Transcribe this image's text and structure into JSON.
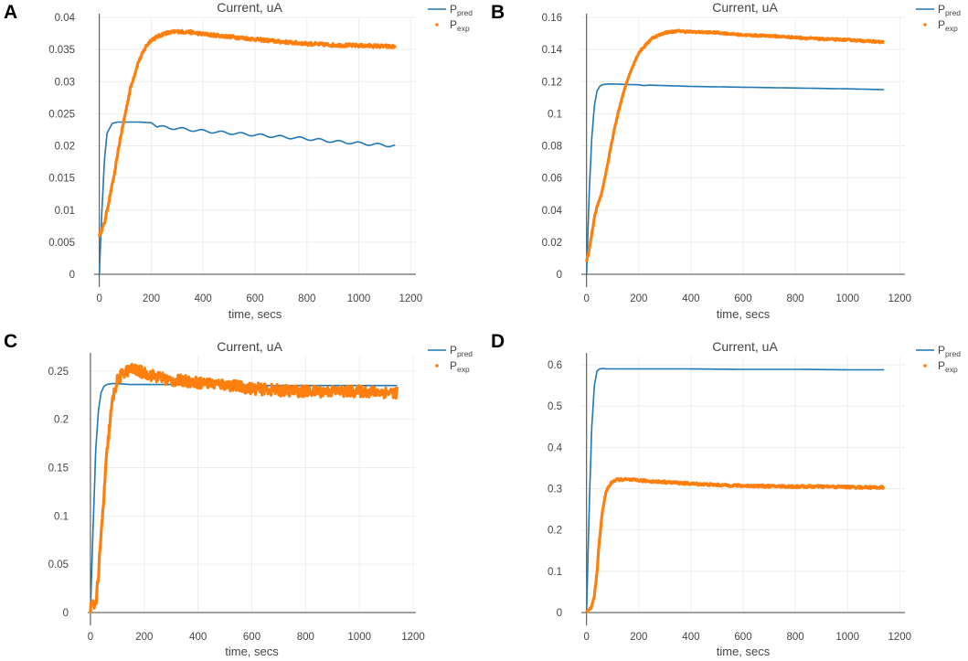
{
  "panels": [
    "A",
    "B",
    "C",
    "D"
  ],
  "colors": {
    "pred": "#1f77b4",
    "exp": "#ff7f0e",
    "grid": "#eeeeee",
    "axis": "#444444"
  },
  "chart_data": [
    {
      "panel": "A",
      "type": "line",
      "title": "Current, uA",
      "xlabel": "time, secs",
      "ylabel": "",
      "xlim": [
        -20,
        1220
      ],
      "ylim": [
        0,
        0.04
      ],
      "xticks": [
        0,
        200,
        400,
        600,
        800,
        1000,
        1200
      ],
      "xtick_labels": [
        "0",
        "200",
        "400",
        "600",
        "800",
        "1000",
        "1200"
      ],
      "yticks": [
        0,
        0.005,
        0.01,
        0.015,
        0.02,
        0.025,
        0.03,
        0.035,
        0.04
      ],
      "ytick_labels": [
        "0",
        "0.005",
        "0.01",
        "0.015",
        "0.02",
        "0.025",
        "0.03",
        "0.035",
        "0.04"
      ],
      "legend": {
        "position": "top-right",
        "entries": [
          {
            "base": "P",
            "sub": "pred",
            "series": "pred"
          },
          {
            "base": "P",
            "sub": "exp",
            "series": "exp"
          }
        ]
      },
      "series": [
        {
          "name": "P_pred",
          "key": "pred",
          "x": [
            0,
            10,
            20,
            30,
            50,
            70,
            100,
            150,
            200,
            220,
            300,
            400,
            500,
            600,
            700,
            800,
            900,
            1000,
            1100,
            1140
          ],
          "y": [
            0,
            0.01,
            0.018,
            0.022,
            0.0235,
            0.0237,
            0.0237,
            0.0237,
            0.0236,
            0.023,
            0.0227,
            0.0223,
            0.022,
            0.0217,
            0.0214,
            0.0211,
            0.0207,
            0.0204,
            0.0201,
            0.02
          ],
          "wiggle": 0.0002
        },
        {
          "name": "P_exp",
          "key": "exp",
          "x": [
            0,
            20,
            40,
            60,
            80,
            100,
            120,
            150,
            180,
            200,
            250,
            300,
            350,
            400,
            500,
            600,
            700,
            800,
            900,
            1000,
            1100,
            1140
          ],
          "y": [
            0.006,
            0.008,
            0.012,
            0.016,
            0.021,
            0.025,
            0.029,
            0.033,
            0.0355,
            0.0365,
            0.0375,
            0.0378,
            0.0377,
            0.0374,
            0.037,
            0.0366,
            0.0362,
            0.0359,
            0.0357,
            0.0356,
            0.0355,
            0.0354
          ],
          "noise": 0.00025
        }
      ]
    },
    {
      "panel": "B",
      "type": "line",
      "title": "Current, uA",
      "xlabel": "time, secs",
      "ylabel": "",
      "xlim": [
        -20,
        1220
      ],
      "ylim": [
        0,
        0.16
      ],
      "xticks": [
        0,
        200,
        400,
        600,
        800,
        1000,
        1200
      ],
      "xtick_labels": [
        "0",
        "200",
        "400",
        "600",
        "800",
        "1000",
        "1200"
      ],
      "yticks": [
        0,
        0.02,
        0.04,
        0.06,
        0.08,
        0.1,
        0.12,
        0.14,
        0.16
      ],
      "ytick_labels": [
        "0",
        "0.02",
        "0.04",
        "0.06",
        "0.08",
        "0.1",
        "0.12",
        "0.14",
        "0.16"
      ],
      "legend": {
        "position": "top-right",
        "entries": [
          {
            "base": "P",
            "sub": "pred",
            "series": "pred"
          },
          {
            "base": "P",
            "sub": "exp",
            "series": "exp"
          }
        ]
      },
      "series": [
        {
          "name": "P_pred",
          "key": "pred",
          "x": [
            0,
            10,
            20,
            30,
            40,
            50,
            60,
            80,
            100,
            200,
            220,
            240,
            400,
            600,
            800,
            1000,
            1140
          ],
          "y": [
            0,
            0.05,
            0.085,
            0.105,
            0.114,
            0.117,
            0.118,
            0.1185,
            0.1185,
            0.118,
            0.1175,
            0.1178,
            0.117,
            0.1165,
            0.116,
            0.1155,
            0.115
          ],
          "wiggle": 0
        },
        {
          "name": "P_exp",
          "key": "exp",
          "x": [
            0,
            10,
            20,
            30,
            40,
            50,
            60,
            80,
            100,
            120,
            150,
            180,
            200,
            250,
            300,
            350,
            400,
            500,
            600,
            700,
            800,
            900,
            1000,
            1100,
            1140
          ],
          "y": [
            0.008,
            0.015,
            0.025,
            0.035,
            0.042,
            0.046,
            0.052,
            0.068,
            0.085,
            0.1,
            0.118,
            0.131,
            0.138,
            0.147,
            0.1505,
            0.1515,
            0.151,
            0.1505,
            0.149,
            0.1485,
            0.1475,
            0.1465,
            0.146,
            0.145,
            0.1445
          ],
          "noise": 0.0006
        }
      ]
    },
    {
      "panel": "C",
      "type": "line",
      "title": "Current, uA",
      "xlabel": "time, secs",
      "ylabel": "",
      "xlim": [
        -10,
        1210
      ],
      "ylim": [
        0,
        0.265
      ],
      "xticks": [
        0,
        200,
        400,
        600,
        800,
        1000,
        1200
      ],
      "xtick_labels": [
        "0",
        "200",
        "400",
        "600",
        "800",
        "1000",
        "1200"
      ],
      "yticks": [
        0,
        0.05,
        0.1,
        0.15,
        0.2,
        0.25
      ],
      "ytick_labels": [
        "0",
        "0.05",
        "0.1",
        "0.15",
        "0.2",
        "0.25"
      ],
      "legend": {
        "position": "top-right",
        "entries": [
          {
            "base": "P",
            "sub": "pred",
            "series": "pred"
          },
          {
            "base": "P",
            "sub": "exp",
            "series": "exp"
          }
        ]
      },
      "series": [
        {
          "name": "P_pred",
          "key": "pred",
          "x": [
            0,
            10,
            20,
            30,
            40,
            50,
            60,
            80,
            100,
            150,
            200,
            400,
            600,
            800,
            1000,
            1140
          ],
          "y": [
            0,
            0.09,
            0.17,
            0.21,
            0.228,
            0.234,
            0.236,
            0.237,
            0.237,
            0.236,
            0.236,
            0.236,
            0.235,
            0.235,
            0.235,
            0.235
          ],
          "wiggle": 0
        },
        {
          "name": "P_exp",
          "key": "exp",
          "x": [
            0,
            10,
            20,
            30,
            40,
            50,
            60,
            70,
            80,
            90,
            100,
            120,
            150,
            180,
            200,
            250,
            300,
            350,
            400,
            500,
            600,
            700,
            800,
            900,
            1000,
            1100,
            1140
          ],
          "y": [
            0.005,
            0.008,
            0.01,
            0.04,
            0.08,
            0.12,
            0.16,
            0.19,
            0.215,
            0.23,
            0.24,
            0.248,
            0.252,
            0.25,
            0.248,
            0.244,
            0.24,
            0.24,
            0.238,
            0.236,
            0.232,
            0.23,
            0.229,
            0.229,
            0.229,
            0.228,
            0.228
          ],
          "noise": 0.006
        }
      ]
    },
    {
      "panel": "D",
      "type": "line",
      "title": "Current, uA",
      "xlabel": "time, secs",
      "ylabel": "",
      "xlim": [
        -20,
        1220
      ],
      "ylim": [
        0,
        0.62
      ],
      "xticks": [
        0,
        200,
        400,
        600,
        800,
        1000,
        1200
      ],
      "xtick_labels": [
        "0",
        "200",
        "400",
        "600",
        "800",
        "1000",
        "1200"
      ],
      "yticks": [
        0,
        0.1,
        0.2,
        0.3,
        0.4,
        0.5,
        0.6
      ],
      "ytick_labels": [
        "0",
        "0.1",
        "0.2",
        "0.3",
        "0.4",
        "0.5",
        "0.6"
      ],
      "legend": {
        "position": "top-right",
        "entries": [
          {
            "base": "P",
            "sub": "pred",
            "series": "pred"
          },
          {
            "base": "P",
            "sub": "exp",
            "series": "exp"
          }
        ]
      },
      "series": [
        {
          "name": "P_pred",
          "key": "pred",
          "x": [
            0,
            10,
            20,
            30,
            40,
            50,
            60,
            80,
            100,
            200,
            400,
            600,
            800,
            1000,
            1140
          ],
          "y": [
            0,
            0.25,
            0.45,
            0.55,
            0.585,
            0.59,
            0.591,
            0.59,
            0.59,
            0.59,
            0.59,
            0.589,
            0.589,
            0.588,
            0.588
          ],
          "wiggle": 0
        },
        {
          "name": "P_exp",
          "key": "exp",
          "x": [
            0,
            10,
            20,
            30,
            40,
            50,
            60,
            70,
            80,
            100,
            120,
            150,
            200,
            300,
            400,
            500,
            600,
            700,
            800,
            900,
            1000,
            1100,
            1140
          ],
          "y": [
            0.002,
            0.005,
            0.015,
            0.04,
            0.1,
            0.18,
            0.24,
            0.28,
            0.3,
            0.318,
            0.322,
            0.322,
            0.32,
            0.316,
            0.312,
            0.309,
            0.307,
            0.306,
            0.305,
            0.305,
            0.304,
            0.303,
            0.303
          ],
          "noise": 0.003
        }
      ]
    }
  ]
}
